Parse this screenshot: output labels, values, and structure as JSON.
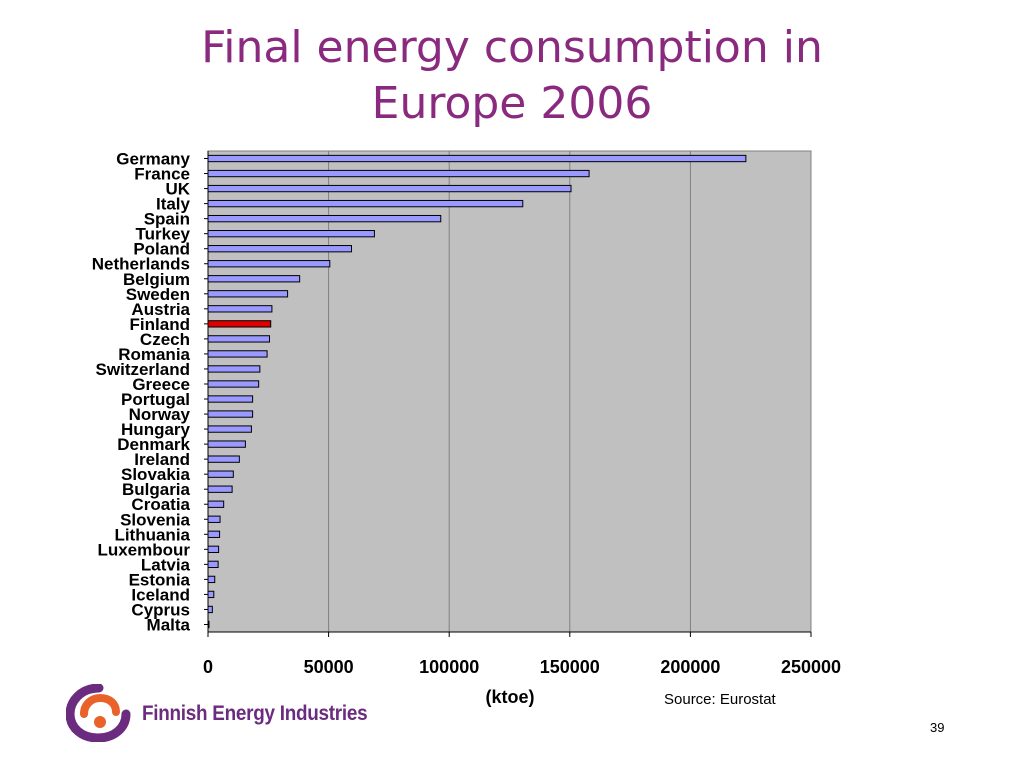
{
  "slide": {
    "title_line1": "Final energy consumption in",
    "title_line2": "Europe 2006",
    "unit_label": "(ktoe)",
    "source": "Source: Eurostat",
    "page_number": "39",
    "logo_text": "Finnish Energy Industries"
  },
  "colors": {
    "title": "#8a2a7f",
    "bar": "#9999ff",
    "highlight": "#e00000",
    "plot_background": "#c0c0c0",
    "logo_orange": "#e8622a",
    "logo_purple": "#6b2b7f"
  },
  "chart_data": {
    "type": "bar",
    "orientation": "horizontal",
    "categories": [
      "Germany",
      "France",
      "UK",
      "Italy",
      "Spain",
      "Turkey",
      "Poland",
      "Netherlands",
      "Belgium",
      "Sweden",
      "Austria",
      "Finland",
      "Czech",
      "Romania",
      "Switzerland",
      "Greece",
      "Portugal",
      "Norway",
      "Hungary",
      "Denmark",
      "Ireland",
      "Slovakia",
      "Bulgaria",
      "Croatia",
      "Slovenia",
      "Lithuania",
      "Luxembour",
      "Latvia",
      "Estonia",
      "Iceland",
      "Cyprus",
      "Malta"
    ],
    "values": [
      223000,
      158000,
      150500,
      130500,
      96500,
      69000,
      59500,
      50500,
      38000,
      33000,
      26500,
      26000,
      25500,
      24500,
      21500,
      21000,
      18500,
      18500,
      18000,
      15500,
      13000,
      10500,
      10000,
      6500,
      5000,
      4800,
      4400,
      4200,
      2800,
      2400,
      1800,
      400
    ],
    "highlight": "Finland",
    "xlim": [
      0,
      250000
    ],
    "xticks": [
      "0",
      "50000",
      "100000",
      "150000",
      "200000",
      "250000"
    ],
    "xlabel": "(ktoe)",
    "grid": true
  }
}
